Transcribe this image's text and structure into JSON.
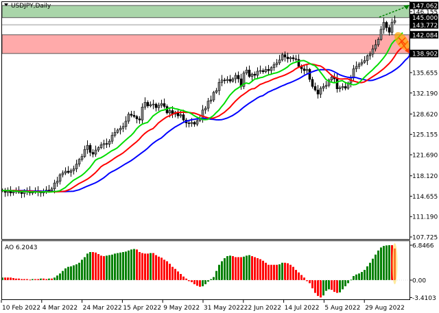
{
  "header": {
    "symbol_label": "USDJPY,Daily"
  },
  "indicator": {
    "ao_label": "AO 6.2043"
  },
  "colors": {
    "bull_candle": "#ffffff",
    "bear_candle": "#000000",
    "lips": "#00dd00",
    "teeth": "#ff0000",
    "jaw": "#0000ff",
    "resistance_zone": "#a9d5a9",
    "support_zone": "#ffaaaa",
    "ao_up": "#008000",
    "ao_down": "#ff0000",
    "highlight": "#ffa500"
  },
  "chart_data": [
    {
      "type": "candlestick",
      "title": "USDJPY,Daily",
      "ylim": [
        107.725,
        147.062
      ],
      "y_ticks": [
        "147.062",
        "146.155",
        "145.000",
        "143.772",
        "142.084",
        "138.902",
        "135.655",
        "132.190",
        "128.620",
        "125.155",
        "121.690",
        "118.120",
        "114.655",
        "111.190",
        "107.725"
      ],
      "highlighted_levels": [
        "147.062",
        "145.000",
        "143.772",
        "142.084",
        "138.902"
      ],
      "zones": [
        {
          "kind": "resistance",
          "from": 145.0,
          "to": 147.062
        },
        {
          "kind": "support",
          "from": 138.902,
          "to": 142.084
        }
      ],
      "x_ticks": [
        "10 Feb 2022",
        "4 Mar 2022",
        "24 Mar 2022",
        "15 Apr 2022",
        "9 May 2022",
        "31 May 2022",
        "22 Jun 2022",
        "14 Jul 2022",
        "5 Aug 2022",
        "29 Aug 2022"
      ],
      "overlays": [
        "Alligator jaw",
        "Alligator teeth",
        "Alligator lips"
      ],
      "closes": [
        115.6,
        115.3,
        115.5,
        115.2,
        115.4,
        115.6,
        115.3,
        115.1,
        115.4,
        115.5,
        115.2,
        115.3,
        115.6,
        115.4,
        115.2,
        115.5,
        115.7,
        115.6,
        115.9,
        116.9,
        117.2,
        118.3,
        118.6,
        118.9,
        118.7,
        119.0,
        119.3,
        120.1,
        120.9,
        121.4,
        122.6,
        123.3,
        122.1,
        121.8,
        122.5,
        122.9,
        123.4,
        123.6,
        123.5,
        124.0,
        125.0,
        125.5,
        125.9,
        126.2,
        126.5,
        127.4,
        128.6,
        128.4,
        128.2,
        127.8,
        127.6,
        129.8,
        130.6,
        130.0,
        130.2,
        130.3,
        129.7,
        130.1,
        130.4,
        129.9,
        128.8,
        129.2,
        128.6,
        128.9,
        128.3,
        128.5,
        127.6,
        127.1,
        127.0,
        127.2,
        126.9,
        127.5,
        127.9,
        129.3,
        129.6,
        130.8,
        131.0,
        132.3,
        132.6,
        134.0,
        134.4,
        134.3,
        134.5,
        134.2,
        134.6,
        135.2,
        134.6,
        133.3,
        135.6,
        136.1,
        135.0,
        135.4,
        135.2,
        135.9,
        136.0,
        135.8,
        136.2,
        136.0,
        136.5,
        137.0,
        137.3,
        137.8,
        138.7,
        138.3,
        138.0,
        138.2,
        138.0,
        137.9,
        136.7,
        136.3,
        136.0,
        136.2,
        134.5,
        133.3,
        132.7,
        132.0,
        133.0,
        133.3,
        133.5,
        134.4,
        134.9,
        134.6,
        132.9,
        133.1,
        133.3,
        133.0,
        133.9,
        134.8,
        136.3,
        136.7,
        137.1,
        137.4,
        137.7,
        138.5,
        138.8,
        139.7,
        140.4,
        141.3,
        143.0,
        144.2,
        143.3,
        142.5,
        144.2,
        144.5
      ]
    },
    {
      "type": "bar",
      "title": "AO 6.2043",
      "ylim": [
        -3.4103,
        6.8466
      ],
      "y_ticks": [
        "6.8466",
        "0.00",
        "-3.4103"
      ],
      "values": [
        0.5,
        0.5,
        0.5,
        0.5,
        0.4,
        0.3,
        0.3,
        0.2,
        0.2,
        0.2,
        0.1,
        0.2,
        0.2,
        0.2,
        0.3,
        0.3,
        0.2,
        0.3,
        0.3,
        0.5,
        0.9,
        1.3,
        1.8,
        2.3,
        2.6,
        2.7,
        2.9,
        3.1,
        3.4,
        4.0,
        4.5,
        5.2,
        5.5,
        5.5,
        5.4,
        5.1,
        4.8,
        4.7,
        4.8,
        4.9,
        5.0,
        5.2,
        5.3,
        5.4,
        5.5,
        5.6,
        5.8,
        6.0,
        6.1,
        6.0,
        5.5,
        5.3,
        5.2,
        5.2,
        5.3,
        5.3,
        4.9,
        4.6,
        4.4,
        4.0,
        3.7,
        3.2,
        2.6,
        2.2,
        1.7,
        1.2,
        0.7,
        0.3,
        -0.2,
        -0.4,
        -0.8,
        -1.1,
        -1.3,
        -1.2,
        -0.8,
        -0.3,
        0.2,
        0.6,
        1.8,
        3.0,
        3.7,
        4.3,
        4.7,
        4.8,
        4.7,
        4.5,
        4.5,
        4.5,
        4.6,
        4.8,
        4.9,
        4.7,
        4.5,
        4.3,
        4.1,
        3.8,
        3.4,
        3.0,
        3.0,
        3.0,
        3.0,
        3.1,
        3.4,
        3.4,
        3.3,
        3.0,
        2.6,
        2.0,
        1.5,
        1.0,
        0.5,
        -0.2,
        -0.6,
        -1.6,
        -2.5,
        -3.1,
        -3.4,
        -3.0,
        -2.1,
        -1.8,
        -1.9,
        -2.3,
        -2.5,
        -2.4,
        -1.8,
        -1.2,
        -0.6,
        0.1,
        0.8,
        1.1,
        1.3,
        1.6,
        2.0,
        2.7,
        3.4,
        4.2,
        5.0,
        5.8,
        6.4,
        6.7,
        6.8,
        6.85,
        6.85,
        6.2
      ]
    }
  ]
}
